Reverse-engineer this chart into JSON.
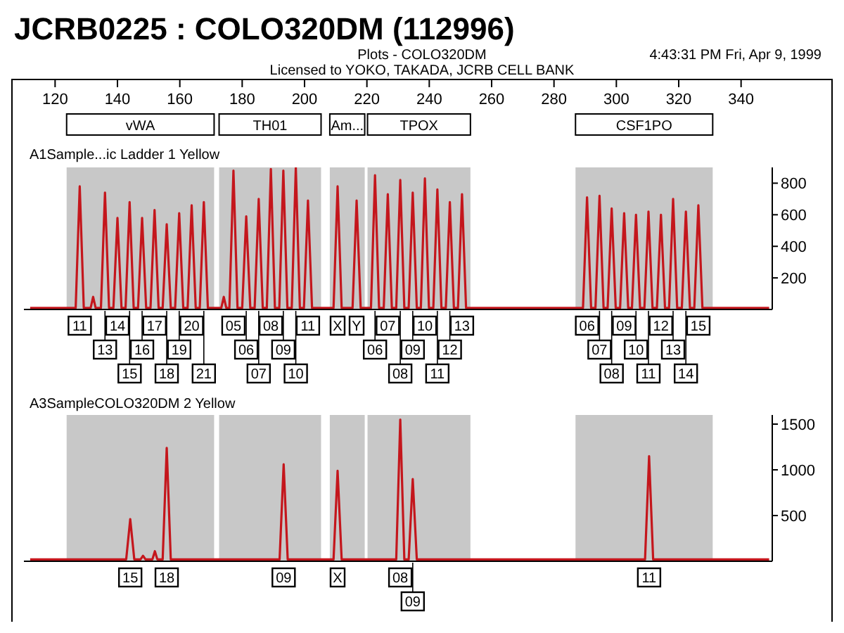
{
  "chart_data": [
    {
      "type": "line",
      "title": "JCRB0225 : COLO320DM (112996)",
      "subtitle": "Plots - COLO320DM",
      "marker": "none",
      "xlim": [
        110,
        350
      ],
      "xticks": [
        120,
        140,
        160,
        180,
        200,
        220,
        240,
        260,
        280,
        300,
        320,
        340
      ],
      "ylim": [
        0,
        900
      ],
      "yticks": [
        200,
        400,
        600,
        800
      ],
      "bands": [
        {
          "axis": "x",
          "from": 123.7,
          "to": 171,
          "label": "vWA",
          "color": "#c8c8c8"
        },
        {
          "axis": "x",
          "from": 172.6,
          "to": 205.3,
          "label": "TH01",
          "color": "#c8c8c8"
        },
        {
          "axis": "x",
          "from": 208.1,
          "to": 219.3,
          "label": "Am...",
          "color": "#c8c8c8"
        },
        {
          "axis": "x",
          "from": 220.2,
          "to": 253.2,
          "label": "TPOX",
          "color": "#c8c8c8"
        },
        {
          "axis": "x",
          "from": 286.9,
          "to": 330.9,
          "label": "CSF1PO",
          "color": "#c8c8c8"
        }
      ],
      "series": [
        {
          "color": "#c4161c",
          "x": [
            112,
            126.6,
            127.9,
            129.2,
            131.4,
            132.2,
            133.0,
            134.7,
            136.0,
            137.3,
            138.7,
            140.0,
            141.3,
            142.6,
            143.9,
            145.2,
            146.6,
            147.9,
            149.2,
            150.6,
            151.9,
            153.2,
            154.5,
            155.8,
            157.1,
            158.5,
            159.8,
            161.1,
            162.5,
            163.8,
            165.1,
            166.4,
            167.7,
            169.0,
            173.3,
            174.1,
            174.9,
            175.9,
            177.2,
            178.5,
            180.0,
            181.3,
            182.6,
            184.0,
            185.3,
            186.6,
            187.9,
            189.2,
            190.5,
            191.9,
            193.2,
            194.5,
            195.9,
            197.2,
            198.5,
            199.8,
            201.1,
            202.4,
            209.3,
            210.6,
            211.9,
            215.4,
            216.7,
            218.0,
            221.3,
            222.6,
            223.9,
            225.4,
            226.7,
            228.0,
            229.4,
            230.7,
            232.0,
            233.4,
            234.7,
            236.0,
            237.3,
            238.6,
            239.9,
            241.3,
            242.6,
            243.9,
            245.3,
            246.6,
            247.9,
            249.2,
            250.5,
            251.8,
            289.3,
            290.6,
            291.9,
            293.3,
            294.6,
            295.9,
            297.2,
            298.5,
            299.8,
            301.2,
            302.5,
            303.8,
            305.0,
            306.3,
            307.6,
            309.0,
            310.3,
            311.6,
            313.0,
            314.3,
            315.6,
            316.9,
            318.2,
            319.5,
            321.0,
            322.3,
            323.6,
            325.0,
            326.3,
            327.6,
            349
          ],
          "values": [
            10,
            10,
            780,
            10,
            10,
            80,
            10,
            10,
            740,
            10,
            10,
            580,
            10,
            10,
            680,
            10,
            10,
            580,
            10,
            10,
            630,
            10,
            10,
            540,
            10,
            10,
            610,
            10,
            10,
            660,
            10,
            10,
            680,
            10,
            10,
            80,
            10,
            10,
            880,
            10,
            10,
            590,
            10,
            10,
            700,
            10,
            10,
            890,
            10,
            10,
            880,
            10,
            10,
            900,
            10,
            10,
            690,
            10,
            10,
            780,
            10,
            10,
            690,
            10,
            10,
            850,
            10,
            10,
            730,
            10,
            10,
            820,
            10,
            10,
            740,
            10,
            10,
            830,
            10,
            10,
            760,
            10,
            10,
            680,
            10,
            10,
            730,
            10,
            10,
            710,
            10,
            10,
            720,
            10,
            10,
            640,
            10,
            10,
            610,
            10,
            10,
            600,
            10,
            10,
            620,
            10,
            10,
            600,
            10,
            10,
            700,
            10,
            10,
            620,
            10,
            10,
            660,
            10,
            10
          ]
        }
      ],
      "annotations": [
        "Licensed to YOKO, TAKADA, JCRB CELL BANK",
        "4:43:31 PM  Fri, Apr 9, 1999",
        "A1Sample...ic Ladder  1 Yellow",
        {
          "text": "11",
          "x": 127.9,
          "y": 0
        },
        {
          "text": "13",
          "x": 136.0,
          "y": 0
        },
        {
          "text": "14",
          "x": 140.0,
          "y": 0
        },
        {
          "text": "15",
          "x": 143.9,
          "y": 0
        },
        {
          "text": "16",
          "x": 147.9,
          "y": 0
        },
        {
          "text": "17",
          "x": 151.9,
          "y": 0
        },
        {
          "text": "18",
          "x": 155.8,
          "y": 0
        },
        {
          "text": "19",
          "x": 159.8,
          "y": 0
        },
        {
          "text": "20",
          "x": 163.8,
          "y": 0
        },
        {
          "text": "21",
          "x": 167.7,
          "y": 0
        },
        {
          "text": "05",
          "x": 177.2,
          "y": 0
        },
        {
          "text": "06",
          "x": 181.3,
          "y": 0
        },
        {
          "text": "07",
          "x": 185.3,
          "y": 0
        },
        {
          "text": "08",
          "x": 189.2,
          "y": 0
        },
        {
          "text": "09",
          "x": 193.2,
          "y": 0
        },
        {
          "text": "10",
          "x": 197.2,
          "y": 0
        },
        {
          "text": "11",
          "x": 201.1,
          "y": 0
        },
        {
          "text": "X",
          "x": 210.6,
          "y": 0
        },
        {
          "text": "Y",
          "x": 216.7,
          "y": 0
        },
        {
          "text": "06",
          "x": 222.6,
          "y": 0
        },
        {
          "text": "07",
          "x": 226.7,
          "y": 0
        },
        {
          "text": "08",
          "x": 230.7,
          "y": 0
        },
        {
          "text": "09",
          "x": 234.7,
          "y": 0
        },
        {
          "text": "10",
          "x": 238.6,
          "y": 0
        },
        {
          "text": "11",
          "x": 242.6,
          "y": 0
        },
        {
          "text": "12",
          "x": 246.6,
          "y": 0
        },
        {
          "text": "13",
          "x": 250.5,
          "y": 0
        },
        {
          "text": "06",
          "x": 290.6,
          "y": 0
        },
        {
          "text": "07",
          "x": 294.6,
          "y": 0
        },
        {
          "text": "08",
          "x": 298.5,
          "y": 0
        },
        {
          "text": "09",
          "x": 302.5,
          "y": 0
        },
        {
          "text": "10",
          "x": 306.3,
          "y": 0
        },
        {
          "text": "11",
          "x": 310.3,
          "y": 0
        },
        {
          "text": "12",
          "x": 314.3,
          "y": 0
        },
        {
          "text": "13",
          "x": 318.2,
          "y": 0
        },
        {
          "text": "14",
          "x": 322.3,
          "y": 0
        },
        {
          "text": "15",
          "x": 326.3,
          "y": 0
        }
      ]
    },
    {
      "type": "line",
      "title": "A3SampleCOLO320DM   2 Yellow",
      "marker": "none",
      "xlim": [
        110,
        350
      ],
      "tick_labels": "y",
      "ylim": [
        0,
        1600
      ],
      "yticks": [
        500,
        1000,
        1500
      ],
      "bands": [
        {
          "axis": "x",
          "from": 123.7,
          "to": 171,
          "color": "#c8c8c8"
        },
        {
          "axis": "x",
          "from": 172.6,
          "to": 205.3,
          "color": "#c8c8c8"
        },
        {
          "axis": "x",
          "from": 208.1,
          "to": 219.3,
          "color": "#c8c8c8"
        },
        {
          "axis": "x",
          "from": 220.2,
          "to": 253.2,
          "color": "#c8c8c8"
        },
        {
          "axis": "x",
          "from": 286.9,
          "to": 330.9,
          "color": "#c8c8c8"
        }
      ],
      "series": [
        {
          "color": "#c4161c",
          "x": [
            112,
            142.8,
            144.1,
            145.4,
            147.4,
            148.2,
            149.0,
            151.2,
            152.0,
            152.8,
            154.5,
            155.8,
            157.1,
            192.0,
            193.3,
            194.6,
            209.3,
            210.6,
            211.9,
            229.4,
            230.7,
            232.0,
            233.4,
            234.7,
            236.0,
            309.2,
            310.5,
            311.8,
            349
          ],
          "values": [
            20,
            20,
            460,
            20,
            20,
            60,
            20,
            20,
            110,
            20,
            20,
            1240,
            20,
            20,
            1060,
            20,
            20,
            990,
            20,
            20,
            1550,
            20,
            20,
            900,
            20,
            20,
            1150,
            20,
            20
          ]
        }
      ],
      "annotations": [
        {
          "text": "15",
          "x": 144.1,
          "y": 0
        },
        {
          "text": "18",
          "x": 155.8,
          "y": 0
        },
        {
          "text": "09",
          "x": 193.3,
          "y": 0
        },
        {
          "text": "X",
          "x": 210.6,
          "y": 0
        },
        {
          "text": "08",
          "x": 230.7,
          "y": 0
        },
        {
          "text": "09",
          "x": 234.7,
          "y": 0
        },
        {
          "text": "11",
          "x": 310.5,
          "y": 0
        }
      ]
    }
  ]
}
